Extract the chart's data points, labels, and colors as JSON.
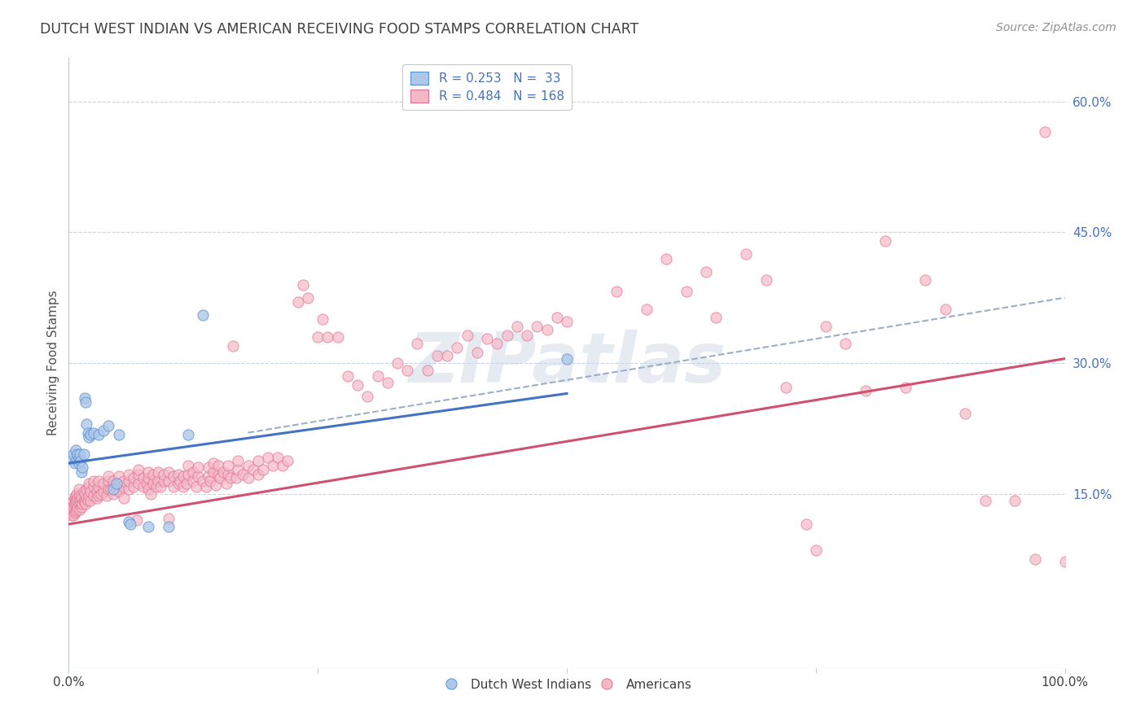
{
  "title": "DUTCH WEST INDIAN VS AMERICAN RECEIVING FOOD STAMPS CORRELATION CHART",
  "source": "Source: ZipAtlas.com",
  "ylabel": "Receiving Food Stamps",
  "watermark": "ZIPatlas",
  "xlim": [
    0.0,
    1.0
  ],
  "ylim": [
    -0.05,
    0.65
  ],
  "plot_ylim": [
    -0.05,
    0.65
  ],
  "ytick_positions": [
    0.15,
    0.3,
    0.45,
    0.6
  ],
  "ytick_labels": [
    "15.0%",
    "30.0%",
    "45.0%",
    "60.0%"
  ],
  "legend_R_blue": "0.253",
  "legend_N_blue": "33",
  "legend_R_pink": "0.484",
  "legend_N_pink": "168",
  "blue_fill": "#adc8e8",
  "pink_fill": "#f5b8c8",
  "blue_edge": "#5b8fd4",
  "pink_edge": "#e07090",
  "blue_line_color": "#4472c4",
  "pink_line_color": "#d05070",
  "dashed_line_color": "#9daec8",
  "legend_text_color": "#4472c4",
  "title_color": "#404040",
  "source_color": "#909090",
  "ylabel_color": "#505050",
  "ytick_label_color": "#4472c4",
  "background_color": "#ffffff",
  "grid_color": "#c8d4e4",
  "blue_regression": [
    0.0,
    0.5,
    0.185,
    0.265
  ],
  "pink_regression": [
    0.0,
    1.0,
    0.115,
    0.305
  ],
  "dashed_line": [
    0.18,
    1.0,
    0.22,
    0.375
  ],
  "blue_scatter": [
    [
      0.003,
      0.19
    ],
    [
      0.005,
      0.195
    ],
    [
      0.006,
      0.185
    ],
    [
      0.007,
      0.2
    ],
    [
      0.008,
      0.19
    ],
    [
      0.009,
      0.195
    ],
    [
      0.01,
      0.19
    ],
    [
      0.01,
      0.185
    ],
    [
      0.011,
      0.195
    ],
    [
      0.012,
      0.188
    ],
    [
      0.013,
      0.175
    ],
    [
      0.014,
      0.18
    ],
    [
      0.015,
      0.195
    ],
    [
      0.016,
      0.26
    ],
    [
      0.017,
      0.255
    ],
    [
      0.018,
      0.23
    ],
    [
      0.019,
      0.22
    ],
    [
      0.02,
      0.215
    ],
    [
      0.022,
      0.218
    ],
    [
      0.025,
      0.22
    ],
    [
      0.03,
      0.218
    ],
    [
      0.035,
      0.222
    ],
    [
      0.04,
      0.228
    ],
    [
      0.045,
      0.155
    ],
    [
      0.048,
      0.162
    ],
    [
      0.05,
      0.218
    ],
    [
      0.06,
      0.118
    ],
    [
      0.062,
      0.115
    ],
    [
      0.08,
      0.112
    ],
    [
      0.1,
      0.112
    ],
    [
      0.12,
      0.218
    ],
    [
      0.135,
      0.355
    ],
    [
      0.5,
      0.305
    ]
  ],
  "pink_scatter": [
    [
      0.001,
      0.13
    ],
    [
      0.002,
      0.128
    ],
    [
      0.002,
      0.135
    ],
    [
      0.003,
      0.125
    ],
    [
      0.003,
      0.132
    ],
    [
      0.004,
      0.13
    ],
    [
      0.004,
      0.14
    ],
    [
      0.005,
      0.125
    ],
    [
      0.005,
      0.135
    ],
    [
      0.005,
      0.142
    ],
    [
      0.006,
      0.128
    ],
    [
      0.006,
      0.138
    ],
    [
      0.006,
      0.145
    ],
    [
      0.007,
      0.13
    ],
    [
      0.007,
      0.14
    ],
    [
      0.007,
      0.148
    ],
    [
      0.008,
      0.132
    ],
    [
      0.008,
      0.142
    ],
    [
      0.008,
      0.15
    ],
    [
      0.009,
      0.135
    ],
    [
      0.009,
      0.145
    ],
    [
      0.01,
      0.138
    ],
    [
      0.01,
      0.148
    ],
    [
      0.01,
      0.155
    ],
    [
      0.011,
      0.132
    ],
    [
      0.011,
      0.142
    ],
    [
      0.012,
      0.138
    ],
    [
      0.012,
      0.148
    ],
    [
      0.013,
      0.135
    ],
    [
      0.013,
      0.145
    ],
    [
      0.014,
      0.138
    ],
    [
      0.015,
      0.142
    ],
    [
      0.015,
      0.152
    ],
    [
      0.016,
      0.14
    ],
    [
      0.016,
      0.15
    ],
    [
      0.017,
      0.138
    ],
    [
      0.018,
      0.145
    ],
    [
      0.018,
      0.155
    ],
    [
      0.019,
      0.142
    ],
    [
      0.02,
      0.148
    ],
    [
      0.02,
      0.158
    ],
    [
      0.02,
      0.162
    ],
    [
      0.022,
      0.142
    ],
    [
      0.022,
      0.152
    ],
    [
      0.025,
      0.148
    ],
    [
      0.025,
      0.158
    ],
    [
      0.025,
      0.165
    ],
    [
      0.028,
      0.145
    ],
    [
      0.028,
      0.152
    ],
    [
      0.03,
      0.148
    ],
    [
      0.03,
      0.158
    ],
    [
      0.03,
      0.165
    ],
    [
      0.032,
      0.15
    ],
    [
      0.035,
      0.152
    ],
    [
      0.035,
      0.162
    ],
    [
      0.038,
      0.148
    ],
    [
      0.04,
      0.155
    ],
    [
      0.04,
      0.165
    ],
    [
      0.04,
      0.17
    ],
    [
      0.042,
      0.155
    ],
    [
      0.045,
      0.15
    ],
    [
      0.045,
      0.16
    ],
    [
      0.045,
      0.165
    ],
    [
      0.048,
      0.155
    ],
    [
      0.05,
      0.152
    ],
    [
      0.05,
      0.162
    ],
    [
      0.05,
      0.17
    ],
    [
      0.055,
      0.158
    ],
    [
      0.055,
      0.165
    ],
    [
      0.055,
      0.145
    ],
    [
      0.06,
      0.155
    ],
    [
      0.06,
      0.165
    ],
    [
      0.06,
      0.172
    ],
    [
      0.065,
      0.158
    ],
    [
      0.065,
      0.168
    ],
    [
      0.068,
      0.12
    ],
    [
      0.07,
      0.162
    ],
    [
      0.07,
      0.172
    ],
    [
      0.07,
      0.178
    ],
    [
      0.075,
      0.158
    ],
    [
      0.075,
      0.168
    ],
    [
      0.078,
      0.162
    ],
    [
      0.08,
      0.155
    ],
    [
      0.08,
      0.168
    ],
    [
      0.08,
      0.175
    ],
    [
      0.082,
      0.15
    ],
    [
      0.085,
      0.162
    ],
    [
      0.085,
      0.172
    ],
    [
      0.088,
      0.158
    ],
    [
      0.09,
      0.165
    ],
    [
      0.09,
      0.175
    ],
    [
      0.092,
      0.158
    ],
    [
      0.095,
      0.165
    ],
    [
      0.095,
      0.172
    ],
    [
      0.1,
      0.165
    ],
    [
      0.1,
      0.175
    ],
    [
      0.1,
      0.122
    ],
    [
      0.105,
      0.158
    ],
    [
      0.105,
      0.17
    ],
    [
      0.11,
      0.162
    ],
    [
      0.11,
      0.172
    ],
    [
      0.112,
      0.165
    ],
    [
      0.115,
      0.158
    ],
    [
      0.115,
      0.17
    ],
    [
      0.118,
      0.162
    ],
    [
      0.12,
      0.172
    ],
    [
      0.12,
      0.182
    ],
    [
      0.125,
      0.165
    ],
    [
      0.125,
      0.175
    ],
    [
      0.128,
      0.158
    ],
    [
      0.13,
      0.17
    ],
    [
      0.13,
      0.18
    ],
    [
      0.135,
      0.165
    ],
    [
      0.138,
      0.158
    ],
    [
      0.14,
      0.17
    ],
    [
      0.14,
      0.18
    ],
    [
      0.142,
      0.165
    ],
    [
      0.145,
      0.175
    ],
    [
      0.145,
      0.185
    ],
    [
      0.148,
      0.16
    ],
    [
      0.15,
      0.172
    ],
    [
      0.15,
      0.182
    ],
    [
      0.152,
      0.168
    ],
    [
      0.155,
      0.175
    ],
    [
      0.158,
      0.162
    ],
    [
      0.16,
      0.172
    ],
    [
      0.16,
      0.182
    ],
    [
      0.162,
      0.168
    ],
    [
      0.165,
      0.32
    ],
    [
      0.168,
      0.168
    ],
    [
      0.17,
      0.178
    ],
    [
      0.17,
      0.188
    ],
    [
      0.175,
      0.172
    ],
    [
      0.18,
      0.168
    ],
    [
      0.18,
      0.182
    ],
    [
      0.185,
      0.178
    ],
    [
      0.19,
      0.172
    ],
    [
      0.19,
      0.188
    ],
    [
      0.195,
      0.178
    ],
    [
      0.2,
      0.192
    ],
    [
      0.205,
      0.182
    ],
    [
      0.21,
      0.192
    ],
    [
      0.215,
      0.182
    ],
    [
      0.22,
      0.188
    ],
    [
      0.23,
      0.37
    ],
    [
      0.235,
      0.39
    ],
    [
      0.24,
      0.375
    ],
    [
      0.25,
      0.33
    ],
    [
      0.255,
      0.35
    ],
    [
      0.26,
      0.33
    ],
    [
      0.27,
      0.33
    ],
    [
      0.28,
      0.285
    ],
    [
      0.29,
      0.275
    ],
    [
      0.3,
      0.262
    ],
    [
      0.31,
      0.285
    ],
    [
      0.32,
      0.278
    ],
    [
      0.33,
      0.3
    ],
    [
      0.34,
      0.292
    ],
    [
      0.35,
      0.322
    ],
    [
      0.36,
      0.292
    ],
    [
      0.37,
      0.308
    ],
    [
      0.38,
      0.308
    ],
    [
      0.39,
      0.318
    ],
    [
      0.4,
      0.332
    ],
    [
      0.41,
      0.312
    ],
    [
      0.42,
      0.328
    ],
    [
      0.43,
      0.322
    ],
    [
      0.44,
      0.332
    ],
    [
      0.45,
      0.342
    ],
    [
      0.46,
      0.332
    ],
    [
      0.47,
      0.342
    ],
    [
      0.48,
      0.338
    ],
    [
      0.49,
      0.352
    ],
    [
      0.5,
      0.348
    ],
    [
      0.55,
      0.382
    ],
    [
      0.58,
      0.362
    ],
    [
      0.6,
      0.42
    ],
    [
      0.62,
      0.382
    ],
    [
      0.64,
      0.405
    ],
    [
      0.65,
      0.352
    ],
    [
      0.68,
      0.425
    ],
    [
      0.7,
      0.395
    ],
    [
      0.72,
      0.272
    ],
    [
      0.74,
      0.115
    ],
    [
      0.75,
      0.085
    ],
    [
      0.76,
      0.342
    ],
    [
      0.78,
      0.322
    ],
    [
      0.8,
      0.268
    ],
    [
      0.82,
      0.44
    ],
    [
      0.84,
      0.272
    ],
    [
      0.86,
      0.395
    ],
    [
      0.88,
      0.362
    ],
    [
      0.9,
      0.242
    ],
    [
      0.92,
      0.142
    ],
    [
      0.95,
      0.142
    ],
    [
      0.97,
      0.075
    ],
    [
      0.98,
      0.565
    ],
    [
      1.0,
      0.072
    ]
  ]
}
